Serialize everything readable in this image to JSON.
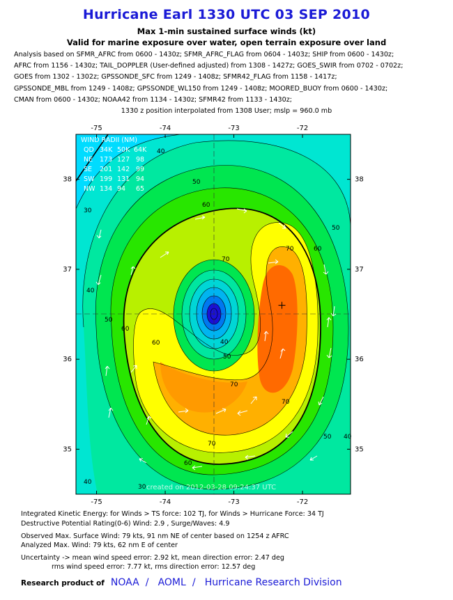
{
  "header": {
    "title": "Hurricane Earl 1330 UTC 03 SEP 2010",
    "subtitle1": "Max 1-min sustained surface winds (kt)",
    "subtitle2": "Valid for marine exposure over water, open terrain exposure over land"
  },
  "analysis": {
    "lines": [
      "Analysis based on SFMR_AFRC from 0600 - 1430z; SFMR_AFRC_FLAG from 0604 - 1403z; SHIP from 0600 - 1430z;",
      "AFRC from 1156 - 1430z; TAIL_DOPPLER (User-defined adjusted) from 1308 - 1427z; GOES_SWIR from 0702 - 0702z;",
      "GOES from 1302 - 1302z; GPSSONDE_SFC from 1249 - 1408z; SFMR42_FLAG from 1158 - 1417z;",
      "GPSSONDE_MBL from 1249 - 1408z; GPSSONDE_WL150 from 1249 - 1408z; MOORED_BUOY from 0600 - 1430z;",
      "CMAN from 0600 - 1430z; NOAA42 from 1134 - 1430z; SFMR42 from 1133 - 1430z;"
    ],
    "position_line": "1330 z position interpolated from 1308 User; mslp = 960.0 mb"
  },
  "map": {
    "lon_ticks": [
      "-75",
      "-74",
      "-73",
      "-72"
    ],
    "lat_ticks": [
      "38",
      "37",
      "36",
      "35"
    ],
    "lon_values": [
      -75,
      -74,
      -73,
      -72
    ],
    "lat_values": [
      38,
      37,
      36,
      35
    ],
    "lon_range": [
      -75.3,
      -71.3
    ],
    "lat_range": [
      34.5,
      38.5
    ],
    "center": {
      "lon": -73.3,
      "lat": 36.45
    },
    "max_wind_marker": {
      "lon": -72.3,
      "lat": 36.6
    },
    "contour_labels": [
      "40",
      "50",
      "60",
      "70",
      "40",
      "50",
      "60",
      "70",
      "60",
      "50",
      "40",
      "60",
      "70",
      "70",
      "70",
      "60",
      "50",
      "40",
      "50",
      "30",
      "40",
      "30"
    ],
    "color_scale": {
      "low": "#00dcff",
      "mid": "#19e600",
      "high": "#ff6a00",
      "eye": "#1a10d8"
    },
    "wind_radii": {
      "title": "WIND RADII (NM)",
      "header": [
        "QD",
        "34K",
        "50K",
        "64K"
      ],
      "rows": [
        {
          "q": "NE",
          "r34": "173",
          "r50": "127",
          "r64": "98"
        },
        {
          "q": "SE",
          "r34": "201",
          "r50": "142",
          "r64": "99"
        },
        {
          "q": "SW",
          "r34": "199",
          "r50": "131",
          "r64": "94"
        },
        {
          "q": "NW",
          "r34": "134",
          "r50": "94",
          "r64": "65"
        }
      ]
    },
    "watermark": "created on 2012-03-28 09:24:37 UTC"
  },
  "stats": {
    "ike": "Integrated Kinetic Energy: for Winds > TS force: 102 TJ, for Winds > Hurricane Force: 34 TJ",
    "dpr": "Destructive Potential Rating(0-6)   Wind: 2.9 , Surge/Waves: 4.9",
    "obs_max": "Observed Max. Surface Wind: 79 kts, 91 nm NE of center based on 1254 z AFRC",
    "analyzed_max": "Analyzed Max. Wind: 79 kts, 62 nm  E of center",
    "uncertainty1": "Uncertainty -> mean wind speed error: 2.92 kt, mean direction error: 2.47 deg",
    "uncertainty2": "rms wind speed error: 7.77 kt, rms direction error: 12.57 deg"
  },
  "branding": {
    "prefix": "Research product of",
    "noaa": "NOAA",
    "aoml": "AOML",
    "hrd": "Hurricane Research Division",
    "separator": "/"
  }
}
